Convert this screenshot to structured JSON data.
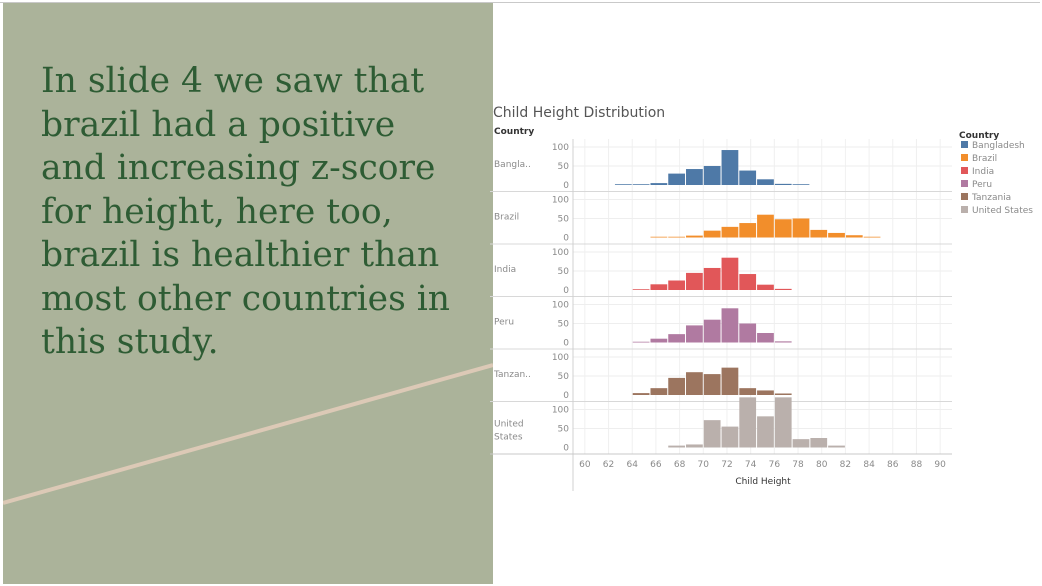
{
  "slide": {
    "text": "In slide 4 we saw that brazil had a positive and increasing z-score for height, here too, brazil is healthier than most other countries in this study."
  },
  "colors": {
    "panel": "#abb39a",
    "text": "#2e5c34",
    "line": "#dcc9b6"
  },
  "chart_data": {
    "type": "bar",
    "title": "Child Height Distribution",
    "row_header": "Country",
    "xlabel": "Child Height",
    "x_ticks": [
      60,
      62,
      64,
      66,
      68,
      70,
      72,
      74,
      76,
      78,
      80,
      82,
      84,
      86,
      88,
      90
    ],
    "x_range": [
      59,
      91
    ],
    "ylim": [
      0,
      100
    ],
    "y_ticks": [
      0,
      50,
      100
    ],
    "bin_width": 1.5,
    "legend": {
      "title": "Country",
      "position": "right",
      "entries": [
        "Bangladesh",
        "Brazil",
        "India",
        "Peru",
        "Tanzania",
        "United States"
      ]
    },
    "series": [
      {
        "name": "Bangladesh",
        "row_label": "Bangla..",
        "color": "#4e79a7",
        "bins": [
          62.5,
          64,
          65.5,
          67,
          68.5,
          70,
          71.5,
          73,
          74.5,
          76,
          77.5
        ],
        "values": [
          2,
          2,
          5,
          30,
          42,
          50,
          92,
          38,
          15,
          3,
          2
        ]
      },
      {
        "name": "Brazil",
        "row_label": "Brazil",
        "color": "#f28e2b",
        "bins": [
          65.5,
          67,
          68.5,
          70,
          71.5,
          73,
          74.5,
          76,
          77.5,
          79,
          80.5,
          82,
          83.5
        ],
        "values": [
          2,
          2,
          5,
          18,
          28,
          38,
          60,
          48,
          50,
          20,
          12,
          6,
          2
        ]
      },
      {
        "name": "India",
        "row_label": "India",
        "color": "#e15759",
        "bins": [
          64,
          65.5,
          67,
          68.5,
          70,
          71.5,
          73,
          74.5,
          76
        ],
        "values": [
          2,
          15,
          25,
          45,
          58,
          85,
          42,
          14,
          3
        ]
      },
      {
        "name": "Peru",
        "row_label": "Peru",
        "color": "#b07aa1",
        "bins": [
          64,
          65.5,
          67,
          68.5,
          70,
          71.5,
          73,
          74.5,
          76
        ],
        "values": [
          2,
          10,
          22,
          45,
          60,
          90,
          50,
          25,
          3
        ]
      },
      {
        "name": "Tanzania",
        "row_label": "Tanzan..",
        "color": "#9c755f",
        "bins": [
          64,
          65.5,
          67,
          68.5,
          70,
          71.5,
          73,
          74.5,
          76
        ],
        "values": [
          5,
          18,
          45,
          60,
          55,
          72,
          18,
          12,
          4
        ]
      },
      {
        "name": "United States",
        "row_label": "United States",
        "color": "#bab0ac",
        "bins": [
          67,
          68.5,
          70,
          71.5,
          73,
          74.5,
          76,
          77.5,
          79,
          80.5
        ],
        "values": [
          5,
          8,
          72,
          55,
          132,
          82,
          132,
          22,
          25,
          5
        ]
      }
    ]
  }
}
